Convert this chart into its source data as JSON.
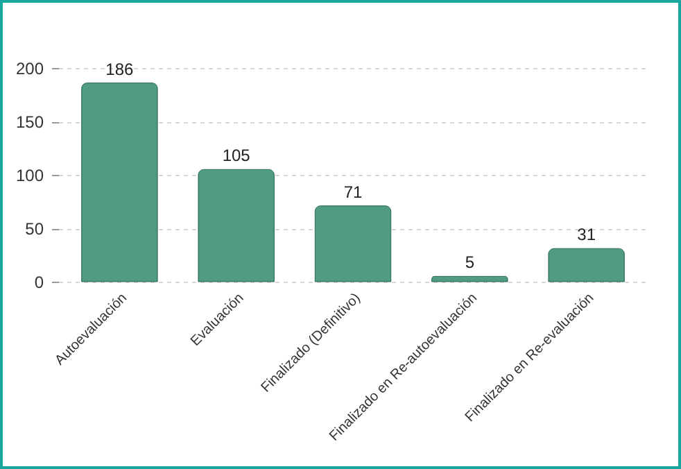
{
  "chart_data": {
    "type": "bar",
    "categories": [
      "Autoevaluación",
      "Evaluación",
      "Finalizado (Definitivo)",
      "Finalizado en Re-autoevaluación",
      "Finalizado en Re-evaluación"
    ],
    "values": [
      186,
      105,
      71,
      5,
      31
    ],
    "color": "#4f9c82",
    "ylim": [
      0,
      200
    ],
    "yticks": [
      0,
      50,
      100,
      150,
      200
    ],
    "grid": "y",
    "data_labels": true
  }
}
